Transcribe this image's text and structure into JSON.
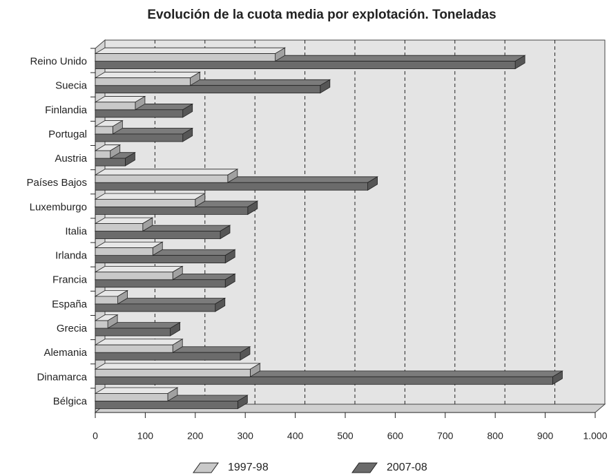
{
  "chart_data": {
    "type": "bar3d_horizontal",
    "title": "Evolución de la cuota media por explotación. Toneladas",
    "categories": [
      "Reino Unido",
      "Suecia",
      "Finlandia",
      "Portugal",
      "Austria",
      "Países Bajos",
      "Luxemburgo",
      "Italia",
      "Irlanda",
      "Francia",
      "España",
      "Grecia",
      "Alemania",
      "Dinamarca",
      "Bélgica"
    ],
    "series": [
      {
        "name": "1997-98",
        "color": "#c9c9c9",
        "values": [
          360,
          190,
          80,
          35,
          30,
          265,
          200,
          95,
          115,
          155,
          45,
          25,
          155,
          310,
          145
        ]
      },
      {
        "name": "2007-08",
        "color": "#6b6b6b",
        "values": [
          840,
          450,
          175,
          175,
          60,
          545,
          305,
          250,
          260,
          260,
          240,
          150,
          290,
          915,
          285
        ]
      }
    ],
    "xlim": [
      0,
      1000
    ],
    "xticks": [
      0,
      100,
      200,
      300,
      400,
      500,
      600,
      700,
      800,
      900,
      {
        "value": 1000,
        "label": "1.000"
      }
    ],
    "grid": true,
    "legend": "bottom"
  }
}
